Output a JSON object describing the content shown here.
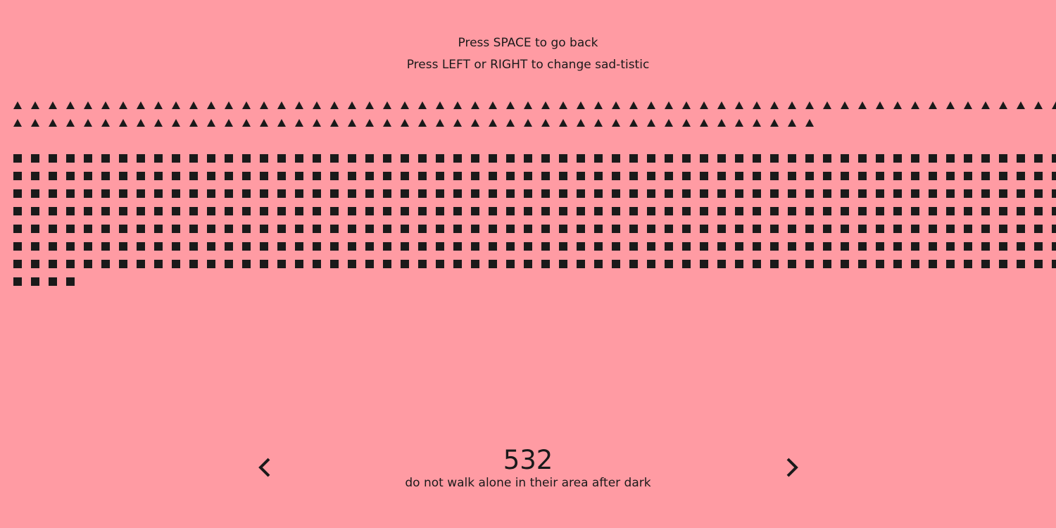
{
  "instructions": {
    "back": "Press SPACE to go back",
    "change": "Press LEFT or RIGHT to change sad-tistic"
  },
  "colors": {
    "background": "#ff9ba3",
    "foreground": "#1a1a1a"
  },
  "icons": {
    "prev": "chevron-left-icon",
    "next": "chevron-right-icon",
    "triangle_glyph": "triangle-icon",
    "square_glyph": "square-icon"
  },
  "stat": {
    "value": "532",
    "caption": "do not walk alone in their area after dark"
  },
  "glyph_counts": {
    "triangles": 106,
    "squares": 424
  }
}
